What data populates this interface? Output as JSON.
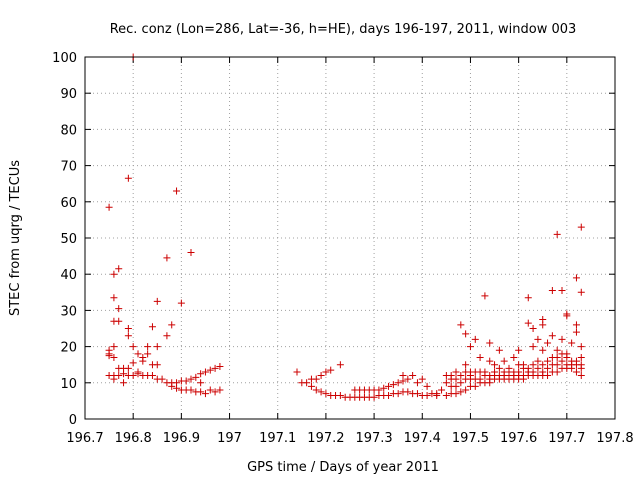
{
  "chart_data": {
    "type": "scatter",
    "title": "Rec. conz (Lon=286, Lat=-36, h=HE), days 196-197, 2011, window 003",
    "xlabel": "GPS time / Days of year 2011",
    "ylabel": "STEC from uqrg / TECUs",
    "xlim": [
      196.7,
      197.8
    ],
    "ylim": [
      0,
      100
    ],
    "x_ticks": [
      "196.7",
      "196.8",
      "196.9",
      "197",
      "197.1",
      "197.2",
      "197.3",
      "197.4",
      "197.5",
      "197.6",
      "197.7",
      "197.8"
    ],
    "y_ticks": [
      "0",
      "10",
      "20",
      "30",
      "40",
      "50",
      "60",
      "70",
      "80",
      "90",
      "100"
    ],
    "grid": true,
    "marker": "+",
    "color": "#cc0000",
    "points": [
      [
        196.75,
        58.5
      ],
      [
        196.75,
        19
      ],
      [
        196.75,
        18
      ],
      [
        196.75,
        17.5
      ],
      [
        196.75,
        12
      ],
      [
        196.76,
        40
      ],
      [
        196.76,
        33.5
      ],
      [
        196.76,
        27
      ],
      [
        196.76,
        20
      ],
      [
        196.76,
        17
      ],
      [
        196.76,
        12
      ],
      [
        196.76,
        11
      ],
      [
        196.77,
        41.5
      ],
      [
        196.77,
        30.5
      ],
      [
        196.77,
        27
      ],
      [
        196.77,
        14
      ],
      [
        196.77,
        12
      ],
      [
        196.78,
        14
      ],
      [
        196.78,
        12.5
      ],
      [
        196.78,
        10
      ],
      [
        196.79,
        66.5
      ],
      [
        196.79,
        25
      ],
      [
        196.79,
        23
      ],
      [
        196.79,
        14
      ],
      [
        196.79,
        12
      ],
      [
        196.8,
        100
      ],
      [
        196.8,
        20
      ],
      [
        196.8,
        15.5
      ],
      [
        196.8,
        12
      ],
      [
        196.81,
        18
      ],
      [
        196.81,
        13
      ],
      [
        196.81,
        12.5
      ],
      [
        196.82,
        17
      ],
      [
        196.82,
        16
      ],
      [
        196.82,
        12
      ],
      [
        196.83,
        20
      ],
      [
        196.83,
        18
      ],
      [
        196.83,
        12
      ],
      [
        196.84,
        25.5
      ],
      [
        196.84,
        15
      ],
      [
        196.84,
        12
      ],
      [
        196.85,
        32.5
      ],
      [
        196.85,
        20
      ],
      [
        196.85,
        15
      ],
      [
        196.85,
        11
      ],
      [
        196.86,
        11
      ],
      [
        196.87,
        44.5
      ],
      [
        196.87,
        23
      ],
      [
        196.87,
        10
      ],
      [
        196.88,
        26
      ],
      [
        196.88,
        10
      ],
      [
        196.88,
        9
      ],
      [
        196.89,
        63
      ],
      [
        196.89,
        10
      ],
      [
        196.89,
        8.5
      ],
      [
        196.9,
        32
      ],
      [
        196.9,
        10.5
      ],
      [
        196.9,
        8
      ],
      [
        196.91,
        10.5
      ],
      [
        196.91,
        8
      ],
      [
        196.92,
        46
      ],
      [
        196.92,
        11
      ],
      [
        196.92,
        8
      ],
      [
        196.93,
        11.5
      ],
      [
        196.93,
        7.5
      ],
      [
        196.94,
        12.5
      ],
      [
        196.94,
        10
      ],
      [
        196.94,
        7.5
      ],
      [
        196.95,
        13
      ],
      [
        196.95,
        7
      ],
      [
        196.96,
        13.5
      ],
      [
        196.96,
        8
      ],
      [
        196.97,
        14
      ],
      [
        196.97,
        7.5
      ],
      [
        196.98,
        14.5
      ],
      [
        196.98,
        8
      ],
      [
        197.14,
        13
      ],
      [
        197.15,
        10
      ],
      [
        197.16,
        10
      ],
      [
        197.17,
        9
      ],
      [
        197.17,
        11
      ],
      [
        197.18,
        8
      ],
      [
        197.18,
        11
      ],
      [
        197.19,
        7.5
      ],
      [
        197.19,
        12
      ],
      [
        197.2,
        7
      ],
      [
        197.2,
        13
      ],
      [
        197.21,
        6.5
      ],
      [
        197.21,
        13.5
      ],
      [
        197.22,
        6.5
      ],
      [
        197.23,
        15
      ],
      [
        197.23,
        6.5
      ],
      [
        197.24,
        6
      ],
      [
        197.25,
        6
      ],
      [
        197.26,
        6
      ],
      [
        197.26,
        8
      ],
      [
        197.27,
        6
      ],
      [
        197.27,
        8
      ],
      [
        197.28,
        6
      ],
      [
        197.28,
        8
      ],
      [
        197.29,
        6
      ],
      [
        197.29,
        8
      ],
      [
        197.3,
        6
      ],
      [
        197.3,
        8
      ],
      [
        197.31,
        6.5
      ],
      [
        197.31,
        8
      ],
      [
        197.32,
        6.5
      ],
      [
        197.32,
        8.5
      ],
      [
        197.33,
        6.5
      ],
      [
        197.33,
        9
      ],
      [
        197.34,
        7
      ],
      [
        197.34,
        9.5
      ],
      [
        197.35,
        7
      ],
      [
        197.35,
        10
      ],
      [
        197.36,
        7.5
      ],
      [
        197.36,
        10.5
      ],
      [
        197.36,
        12
      ],
      [
        197.37,
        7.5
      ],
      [
        197.37,
        11
      ],
      [
        197.38,
        7
      ],
      [
        197.38,
        12
      ],
      [
        197.39,
        7
      ],
      [
        197.39,
        10
      ],
      [
        197.4,
        6.5
      ],
      [
        197.4,
        11
      ],
      [
        197.41,
        6.5
      ],
      [
        197.41,
        9
      ],
      [
        197.42,
        7
      ],
      [
        197.43,
        6.5
      ],
      [
        197.43,
        7
      ],
      [
        197.44,
        8
      ],
      [
        197.45,
        6.5
      ],
      [
        197.45,
        10
      ],
      [
        197.45,
        12
      ],
      [
        197.46,
        7
      ],
      [
        197.46,
        9
      ],
      [
        197.46,
        11
      ],
      [
        197.46,
        12
      ],
      [
        197.47,
        7
      ],
      [
        197.47,
        9
      ],
      [
        197.47,
        11
      ],
      [
        197.47,
        13
      ],
      [
        197.48,
        7.5
      ],
      [
        197.48,
        10
      ],
      [
        197.48,
        12
      ],
      [
        197.48,
        26
      ],
      [
        197.49,
        8
      ],
      [
        197.49,
        11
      ],
      [
        197.49,
        13
      ],
      [
        197.49,
        15
      ],
      [
        197.49,
        23.5
      ],
      [
        197.5,
        9
      ],
      [
        197.5,
        11
      ],
      [
        197.5,
        12
      ],
      [
        197.5,
        13
      ],
      [
        197.5,
        20
      ],
      [
        197.51,
        9
      ],
      [
        197.51,
        11
      ],
      [
        197.51,
        13
      ],
      [
        197.51,
        22
      ],
      [
        197.52,
        10
      ],
      [
        197.52,
        11
      ],
      [
        197.52,
        13
      ],
      [
        197.52,
        17
      ],
      [
        197.53,
        10
      ],
      [
        197.53,
        12
      ],
      [
        197.53,
        13
      ],
      [
        197.53,
        34
      ],
      [
        197.54,
        10
      ],
      [
        197.54,
        11
      ],
      [
        197.54,
        12
      ],
      [
        197.54,
        16
      ],
      [
        197.54,
        21
      ],
      [
        197.55,
        11
      ],
      [
        197.55,
        12
      ],
      [
        197.55,
        13
      ],
      [
        197.55,
        15
      ],
      [
        197.56,
        11
      ],
      [
        197.56,
        12
      ],
      [
        197.56,
        14
      ],
      [
        197.56,
        19
      ],
      [
        197.57,
        11
      ],
      [
        197.57,
        12
      ],
      [
        197.57,
        13
      ],
      [
        197.57,
        16
      ],
      [
        197.58,
        11
      ],
      [
        197.58,
        12
      ],
      [
        197.58,
        13
      ],
      [
        197.58,
        14
      ],
      [
        197.59,
        11
      ],
      [
        197.59,
        12
      ],
      [
        197.59,
        13
      ],
      [
        197.59,
        17
      ],
      [
        197.6,
        11
      ],
      [
        197.6,
        12
      ],
      [
        197.6,
        13
      ],
      [
        197.6,
        15
      ],
      [
        197.6,
        19
      ],
      [
        197.61,
        11
      ],
      [
        197.61,
        12
      ],
      [
        197.61,
        14
      ],
      [
        197.61,
        15
      ],
      [
        197.62,
        12
      ],
      [
        197.62,
        13
      ],
      [
        197.62,
        14
      ],
      [
        197.62,
        26.5
      ],
      [
        197.62,
        33.5
      ],
      [
        197.63,
        12
      ],
      [
        197.63,
        13
      ],
      [
        197.63,
        15
      ],
      [
        197.63,
        20
      ],
      [
        197.63,
        25
      ],
      [
        197.64,
        12
      ],
      [
        197.64,
        14
      ],
      [
        197.64,
        16
      ],
      [
        197.64,
        22
      ],
      [
        197.65,
        12
      ],
      [
        197.65,
        13
      ],
      [
        197.65,
        15
      ],
      [
        197.65,
        19
      ],
      [
        197.65,
        26
      ],
      [
        197.65,
        27.5
      ],
      [
        197.66,
        12
      ],
      [
        197.66,
        14
      ],
      [
        197.66,
        16
      ],
      [
        197.66,
        21
      ],
      [
        197.67,
        13
      ],
      [
        197.67,
        15
      ],
      [
        197.67,
        17
      ],
      [
        197.67,
        23
      ],
      [
        197.67,
        35.5
      ],
      [
        197.68,
        13
      ],
      [
        197.68,
        15
      ],
      [
        197.68,
        17
      ],
      [
        197.68,
        19
      ],
      [
        197.68,
        51
      ],
      [
        197.69,
        14
      ],
      [
        197.69,
        16
      ],
      [
        197.69,
        18
      ],
      [
        197.69,
        22
      ],
      [
        197.69,
        35.5
      ],
      [
        197.7,
        14
      ],
      [
        197.7,
        15
      ],
      [
        197.7,
        17
      ],
      [
        197.7,
        18
      ],
      [
        197.7,
        28.5
      ],
      [
        197.7,
        29
      ],
      [
        197.71,
        14
      ],
      [
        197.71,
        15
      ],
      [
        197.71,
        16
      ],
      [
        197.71,
        21
      ],
      [
        197.72,
        13
      ],
      [
        197.72,
        15
      ],
      [
        197.72,
        16
      ],
      [
        197.72,
        24
      ],
      [
        197.72,
        26
      ],
      [
        197.72,
        39
      ],
      [
        197.73,
        12
      ],
      [
        197.73,
        14
      ],
      [
        197.73,
        15
      ],
      [
        197.73,
        17
      ],
      [
        197.73,
        20
      ],
      [
        197.73,
        35
      ],
      [
        197.73,
        53
      ]
    ]
  }
}
